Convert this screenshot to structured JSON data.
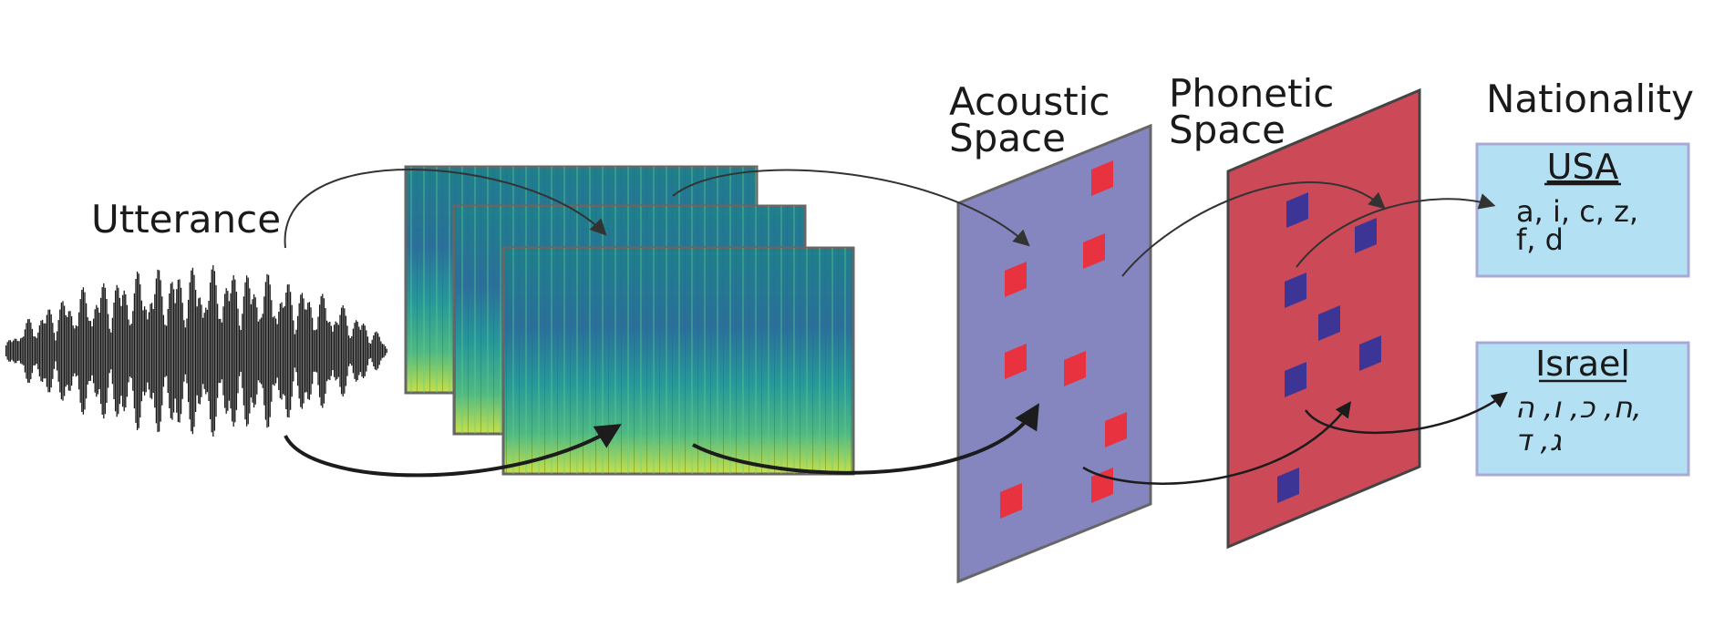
{
  "labels": {
    "utterance": "Utterance",
    "acoustic_space": [
      "Acoustic",
      "Space"
    ],
    "phonetic_space": [
      "Phonetic",
      "Space"
    ],
    "nationality": "Nationality"
  },
  "outputs": {
    "usa": {
      "title": "USA",
      "lines": [
        "a, i, c, z,",
        "f, d"
      ]
    },
    "israel": {
      "title": "Israel",
      "lines": [
        "ח, כ, ו, ה,",
        "ג, ד"
      ]
    }
  },
  "colors": {
    "acoustic_plane": "#8585bf",
    "acoustic_marker": "#e8323f",
    "phonetic_plane": "#cc4a58",
    "phonetic_marker": "#3c3596",
    "output_box": "#b3e1f3",
    "output_border": "#a9a9d6",
    "arrow": "#1c1c1c"
  }
}
